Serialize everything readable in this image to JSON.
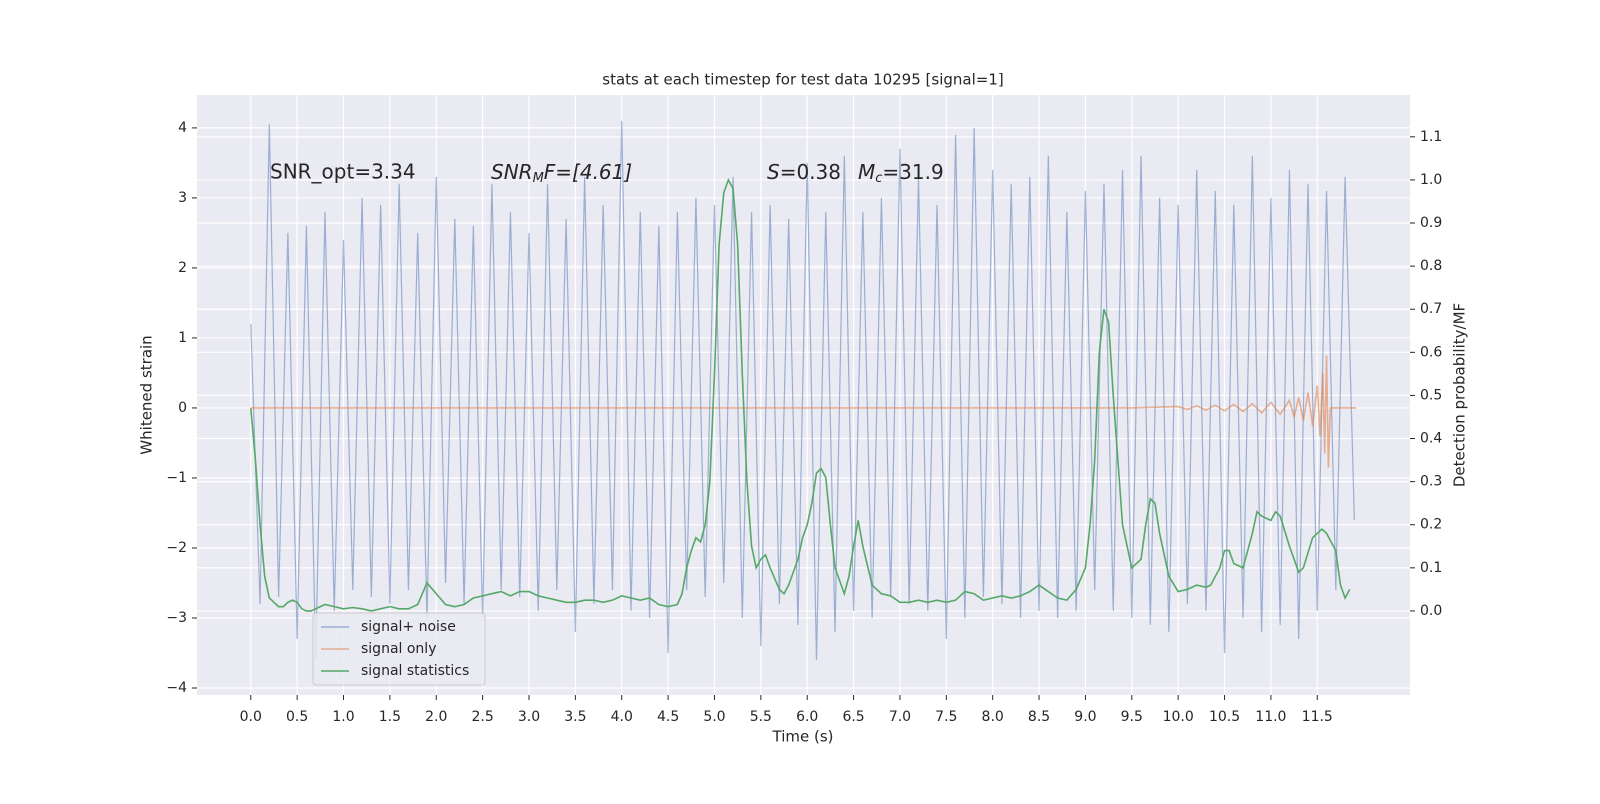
{
  "chart_data": {
    "type": "line",
    "title": "stats at each timestep for test data 10295 [signal=1]",
    "xlabel": "Time (s)",
    "ylabel": "Whitened strain",
    "y2label": "Detection probability/MF",
    "annotations": [
      [
        "SNR_opt=3.34"
      ],
      [
        "SNR",
        "M",
        "F=[4.61]"
      ],
      [
        "S",
        "=0.38"
      ],
      [
        "M",
        "c",
        "=31.9"
      ]
    ],
    "xlim": [
      -0.58,
      12.5
    ],
    "ylim": [
      -4.1,
      4.47
    ],
    "y2lim": [
      -0.195,
      1.197
    ],
    "xticks": [
      {
        "value": 0,
        "label": "0.0"
      },
      {
        "value": 0.5,
        "label": "0.5"
      },
      {
        "value": 1,
        "label": "1.0"
      },
      {
        "value": 1.5,
        "label": "1.5"
      },
      {
        "value": 2,
        "label": "2.0"
      },
      {
        "value": 2.5,
        "label": "2.5"
      },
      {
        "value": 3,
        "label": "3.0"
      },
      {
        "value": 3.5,
        "label": "3.5"
      },
      {
        "value": 4,
        "label": "4.0"
      },
      {
        "value": 4.5,
        "label": "4.5"
      },
      {
        "value": 5,
        "label": "5.0"
      },
      {
        "value": 5.5,
        "label": "5.5"
      },
      {
        "value": 6,
        "label": "6.0"
      },
      {
        "value": 6.5,
        "label": "6.5"
      },
      {
        "value": 7,
        "label": "7.0"
      },
      {
        "value": 7.5,
        "label": "7.5"
      },
      {
        "value": 8,
        "label": "8.0"
      },
      {
        "value": 8.5,
        "label": "8.5"
      },
      {
        "value": 9,
        "label": "9.0"
      },
      {
        "value": 9.5,
        "label": "9.5"
      },
      {
        "value": 10,
        "label": "10.0"
      },
      {
        "value": 10.5,
        "label": "10.5"
      },
      {
        "value": 11,
        "label": "11.0"
      },
      {
        "value": 11.5,
        "label": "11.5"
      }
    ],
    "yticks": [
      {
        "value": -4,
        "label": "−4"
      },
      {
        "value": -3,
        "label": "−3"
      },
      {
        "value": -2,
        "label": "−2"
      },
      {
        "value": -1,
        "label": "−1"
      },
      0,
      1,
      2,
      3,
      4
    ],
    "y2ticks": [
      {
        "value": 0,
        "label": "0.0"
      },
      0.1,
      0.2,
      0.3,
      0.4,
      0.5,
      0.6,
      0.7,
      0.8,
      0.9,
      {
        "value": 1,
        "label": "1.0"
      },
      1.1
    ],
    "grid": true,
    "legend_loc": "lower left",
    "series": [
      {
        "name": "signal+ noise",
        "color": "#4c72b0",
        "opacity": 0.5,
        "x": [
          0,
          0.1,
          0.2,
          0.3,
          0.4,
          0.5,
          0.6,
          0.7,
          0.8,
          0.9,
          1,
          1.1,
          1.2,
          1.3,
          1.4,
          1.5,
          1.6,
          1.7,
          1.8,
          1.9,
          2,
          2.1,
          2.2,
          2.3,
          2.4,
          2.5,
          2.6,
          2.7,
          2.8,
          2.9,
          3,
          3.1,
          3.2,
          3.3,
          3.4,
          3.5,
          3.6,
          3.7,
          3.8,
          3.9,
          4,
          4.1,
          4.2,
          4.3,
          4.4,
          4.5,
          4.6,
          4.7,
          4.8,
          4.9,
          5,
          5.1,
          5.2,
          5.3,
          5.4,
          5.5,
          5.6,
          5.7,
          5.8,
          5.9,
          6,
          6.1,
          6.2,
          6.3,
          6.4,
          6.5,
          6.6,
          6.7,
          6.8,
          6.9,
          7,
          7.1,
          7.2,
          7.3,
          7.4,
          7.5,
          7.6,
          7.7,
          7.8,
          7.9,
          8,
          8.1,
          8.2,
          8.3,
          8.4,
          8.5,
          8.6,
          8.7,
          8.8,
          8.9,
          9,
          9.1,
          9.2,
          9.3,
          9.4,
          9.5,
          9.6,
          9.7,
          9.8,
          9.9,
          10,
          10.1,
          10.2,
          10.3,
          10.4,
          10.5,
          10.6,
          10.7,
          10.8,
          10.9,
          11,
          11.1,
          11.2,
          11.3,
          11.4,
          11.5,
          11.6,
          11.7,
          11.8,
          11.9
        ],
        "values": [
          1.2,
          -2.8,
          4.05,
          -2.7,
          2.5,
          -3.3,
          2.6,
          -3.6,
          2.8,
          -2.9,
          2.4,
          -2.6,
          3.0,
          -2.7,
          2.9,
          -2.8,
          3.2,
          -2.6,
          2.5,
          -3.0,
          3.3,
          -2.5,
          2.7,
          -2.8,
          2.6,
          -3.0,
          3.2,
          -2.6,
          2.8,
          -2.7,
          2.5,
          -2.9,
          3.2,
          -2.6,
          2.7,
          -3.2,
          3.3,
          -2.8,
          2.9,
          -2.6,
          4.1,
          -2.9,
          2.8,
          -3.0,
          2.6,
          -3.5,
          2.8,
          -2.6,
          3.0,
          -2.7,
          2.9,
          -2.5,
          3.3,
          -3.0,
          2.8,
          -3.4,
          2.9,
          -2.8,
          2.7,
          -3.1,
          3.5,
          -3.6,
          2.8,
          -3.2,
          3.6,
          -2.9,
          2.8,
          -3.0,
          3.0,
          -2.7,
          3.7,
          -2.8,
          3.3,
          -2.9,
          2.9,
          -3.3,
          3.9,
          -3.0,
          4.0,
          -2.7,
          3.4,
          -2.8,
          3.2,
          -3.0,
          3.3,
          -2.9,
          3.6,
          -3.0,
          2.8,
          -2.9,
          3.1,
          -2.6,
          3.2,
          -2.9,
          3.4,
          -3.0,
          3.6,
          -3.1,
          3.0,
          -3.2,
          2.9,
          -2.8,
          3.4,
          -2.9,
          3.1,
          -3.5,
          2.9,
          -3.0,
          3.6,
          -3.2,
          3.0,
          -3.1,
          3.4,
          -3.3,
          3.2,
          -2.9,
          3.1,
          -2.6,
          3.3,
          -1.6
        ]
      },
      {
        "name": "signal only",
        "color": "#dd8452",
        "opacity": 0.6,
        "x": [
          0,
          9.5,
          10,
          10.1,
          10.2,
          10.3,
          10.4,
          10.5,
          10.6,
          10.7,
          10.8,
          10.9,
          11,
          11.1,
          11.2,
          11.25,
          11.3,
          11.35,
          11.4,
          11.45,
          11.5,
          11.53,
          11.56,
          11.58,
          11.6,
          11.62,
          11.64,
          11.92
        ],
        "values": [
          0,
          0,
          0.02,
          -0.02,
          0.03,
          -0.03,
          0.04,
          -0.04,
          0.05,
          -0.05,
          0.06,
          -0.07,
          0.08,
          -0.09,
          0.11,
          -0.13,
          0.15,
          -0.18,
          0.22,
          -0.26,
          0.32,
          -0.4,
          0.5,
          -0.65,
          0.75,
          -0.85,
          0,
          0
        ]
      },
      {
        "name": "signal statistics",
        "color": "#55a868",
        "opacity": 1,
        "axis": "y2",
        "x": [
          0,
          0.05,
          0.1,
          0.15,
          0.2,
          0.25,
          0.3,
          0.35,
          0.4,
          0.45,
          0.5,
          0.55,
          0.6,
          0.65,
          0.7,
          0.8,
          0.9,
          1,
          1.1,
          1.2,
          1.3,
          1.4,
          1.5,
          1.6,
          1.7,
          1.8,
          1.85,
          1.9,
          2,
          2.1,
          2.2,
          2.3,
          2.4,
          2.5,
          2.6,
          2.7,
          2.8,
          2.9,
          3,
          3.1,
          3.2,
          3.3,
          3.4,
          3.5,
          3.6,
          3.7,
          3.8,
          3.9,
          4,
          4.1,
          4.2,
          4.3,
          4.4,
          4.5,
          4.6,
          4.65,
          4.7,
          4.75,
          4.8,
          4.85,
          4.9,
          4.95,
          5,
          5.05,
          5.1,
          5.15,
          5.2,
          5.25,
          5.3,
          5.35,
          5.4,
          5.45,
          5.5,
          5.55,
          5.6,
          5.7,
          5.75,
          5.8,
          5.9,
          5.95,
          6,
          6.05,
          6.1,
          6.15,
          6.2,
          6.25,
          6.3,
          6.35,
          6.4,
          6.45,
          6.5,
          6.55,
          6.6,
          6.7,
          6.8,
          6.9,
          7,
          7.1,
          7.2,
          7.3,
          7.4,
          7.5,
          7.6,
          7.7,
          7.8,
          7.9,
          8,
          8.1,
          8.2,
          8.3,
          8.4,
          8.5,
          8.6,
          8.7,
          8.8,
          8.9,
          9,
          9.05,
          9.1,
          9.15,
          9.2,
          9.25,
          9.3,
          9.35,
          9.4,
          9.5,
          9.6,
          9.65,
          9.7,
          9.75,
          9.8,
          9.9,
          10,
          10.1,
          10.2,
          10.3,
          10.35,
          10.45,
          10.5,
          10.55,
          10.6,
          10.7,
          10.8,
          10.85,
          10.9,
          11,
          11.05,
          11.1,
          11.2,
          11.3,
          11.35,
          11.45,
          11.55,
          11.6,
          11.7,
          11.75,
          11.8,
          11.85
        ],
        "values": [
          0.47,
          0.35,
          0.2,
          0.08,
          0.03,
          0.02,
          0.01,
          0.01,
          0.02,
          0.025,
          0.02,
          0.005,
          0,
          0,
          0.005,
          0.015,
          0.01,
          0.005,
          0.008,
          0.005,
          0,
          0.005,
          0.01,
          0.005,
          0.005,
          0.015,
          0.04,
          0.065,
          0.04,
          0.015,
          0.01,
          0.015,
          0.03,
          0.035,
          0.04,
          0.045,
          0.035,
          0.045,
          0.045,
          0.035,
          0.03,
          0.025,
          0.02,
          0.02,
          0.025,
          0.025,
          0.02,
          0.025,
          0.035,
          0.03,
          0.025,
          0.03,
          0.015,
          0.01,
          0.015,
          0.04,
          0.1,
          0.14,
          0.17,
          0.16,
          0.2,
          0.3,
          0.55,
          0.85,
          0.97,
          1.0,
          0.98,
          0.85,
          0.55,
          0.3,
          0.15,
          0.1,
          0.12,
          0.13,
          0.1,
          0.05,
          0.04,
          0.06,
          0.12,
          0.17,
          0.2,
          0.25,
          0.32,
          0.33,
          0.31,
          0.2,
          0.1,
          0.07,
          0.04,
          0.08,
          0.15,
          0.21,
          0.15,
          0.06,
          0.04,
          0.035,
          0.02,
          0.02,
          0.025,
          0.02,
          0.025,
          0.02,
          0.025,
          0.045,
          0.04,
          0.025,
          0.03,
          0.035,
          0.03,
          0.035,
          0.045,
          0.06,
          0.045,
          0.03,
          0.025,
          0.05,
          0.1,
          0.2,
          0.35,
          0.6,
          0.7,
          0.67,
          0.5,
          0.35,
          0.2,
          0.1,
          0.12,
          0.2,
          0.26,
          0.25,
          0.18,
          0.08,
          0.045,
          0.05,
          0.06,
          0.055,
          0.06,
          0.1,
          0.14,
          0.14,
          0.11,
          0.1,
          0.18,
          0.23,
          0.22,
          0.21,
          0.23,
          0.22,
          0.15,
          0.09,
          0.1,
          0.17,
          0.19,
          0.18,
          0.14,
          0.06,
          0.03,
          0.05
        ]
      }
    ]
  }
}
